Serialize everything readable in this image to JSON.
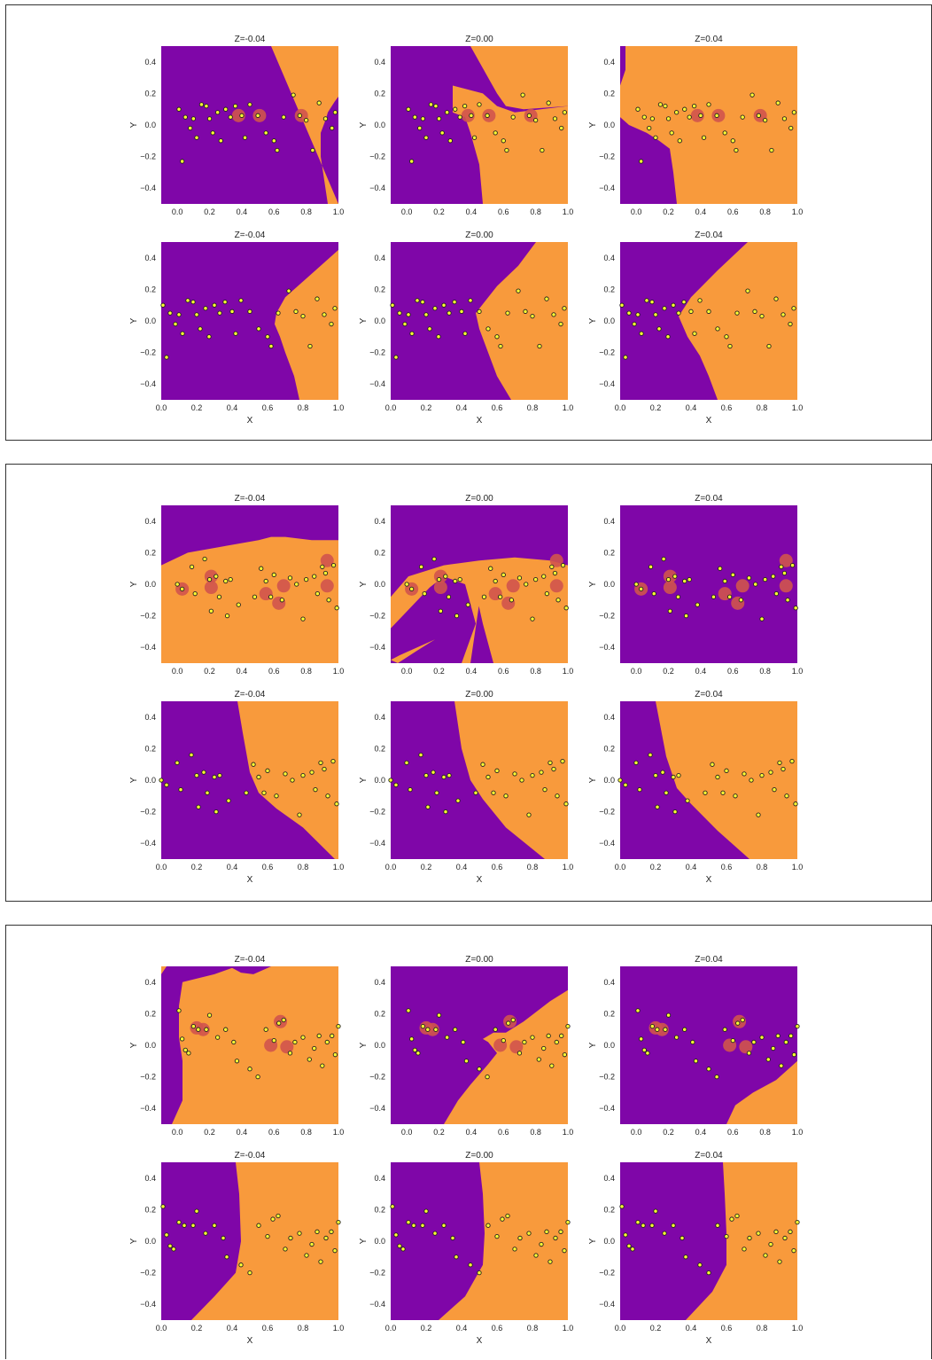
{
  "colors": {
    "class_0": "#7f06a8",
    "class_1": "#f89a3c",
    "point_fill": "#ffff33",
    "point_edge": "#222222",
    "highlight": "#d0544c"
  },
  "xticks": [
    "0.0",
    "0.2",
    "0.4",
    "0.6",
    "0.8",
    "1.0"
  ],
  "yticks": [
    "0.4",
    "0.2",
    "0.0",
    "-0.2",
    "-0.4"
  ],
  "x_label": "X",
  "y_label": "Y",
  "panels": [
    {
      "rows": [
        {
          "titles": [
            "Z=-0.04",
            "Z=0.00",
            "Z=0.04"
          ]
        },
        {
          "titles": [
            "Z=-0.04",
            "Z=0.00",
            "Z=0.04"
          ]
        }
      ]
    },
    {
      "rows": [
        {
          "titles": [
            "Z=-0.04",
            "Z=0.00",
            "Z=0.04"
          ]
        },
        {
          "titles": [
            "Z=-0.04",
            "Z=0.00",
            "Z=0.04"
          ]
        }
      ]
    },
    {
      "rows": [
        {
          "titles": [
            "Z=-0.04",
            "Z=0.00",
            "Z=0.04"
          ]
        },
        {
          "titles": [
            "Z=-0.04",
            "Z=0.00",
            "Z=0.04"
          ]
        }
      ]
    }
  ],
  "chart_data": [
    {
      "type": "scatter",
      "description_of_regions": "decision regions of a binary classifier at three Z slices",
      "xlim_top": [
        -0.1,
        1.0
      ],
      "xlim_bottom": [
        0.0,
        1.0
      ],
      "ylim": [
        -0.5,
        0.5
      ],
      "grid": false,
      "series": [
        {
          "values": [
            [
              0.01,
              0.1
            ],
            [
              0.03,
              -0.23
            ],
            [
              0.05,
              0.05
            ],
            [
              0.08,
              -0.02
            ],
            [
              0.1,
              0.04
            ],
            [
              0.12,
              -0.08
            ],
            [
              0.15,
              0.13
            ],
            [
              0.18,
              0.12
            ],
            [
              0.2,
              0.04
            ],
            [
              0.22,
              -0.05
            ],
            [
              0.25,
              0.08
            ],
            [
              0.27,
              -0.1
            ],
            [
              0.3,
              0.1
            ],
            [
              0.33,
              0.05
            ],
            [
              0.36,
              0.12
            ],
            [
              0.4,
              0.06
            ],
            [
              0.42,
              -0.08
            ],
            [
              0.45,
              0.13
            ],
            [
              0.5,
              0.06
            ],
            [
              0.55,
              -0.05
            ],
            [
              0.6,
              -0.1
            ],
            [
              0.62,
              -0.16
            ],
            [
              0.66,
              0.05
            ],
            [
              0.72,
              0.19
            ],
            [
              0.76,
              0.06
            ],
            [
              0.8,
              0.03
            ],
            [
              0.84,
              -0.16
            ],
            [
              0.88,
              0.14
            ],
            [
              0.92,
              0.04
            ],
            [
              0.96,
              -0.02
            ],
            [
              0.98,
              0.08
            ]
          ]
        }
      ],
      "highlighted": [
        [
          0.38,
          0.06
        ],
        [
          0.51,
          0.06
        ],
        [
          0.77,
          0.06
        ]
      ]
    },
    {
      "type": "scatter",
      "xlim_top": [
        -0.1,
        1.0
      ],
      "xlim_bottom": [
        0.0,
        1.0
      ],
      "ylim": [
        -0.5,
        0.5
      ],
      "grid": false,
      "series": [
        {
          "values": [
            [
              0.0,
              0.0
            ],
            [
              0.03,
              -0.03
            ],
            [
              0.09,
              0.11
            ],
            [
              0.11,
              -0.06
            ],
            [
              0.17,
              0.16
            ],
            [
              0.2,
              0.03
            ],
            [
              0.21,
              -0.17
            ],
            [
              0.24,
              0.05
            ],
            [
              0.26,
              -0.08
            ],
            [
              0.3,
              0.02
            ],
            [
              0.31,
              -0.2
            ],
            [
              0.33,
              0.03
            ],
            [
              0.38,
              -0.13
            ],
            [
              0.48,
              -0.08
            ],
            [
              0.52,
              0.1
            ],
            [
              0.55,
              0.02
            ],
            [
              0.58,
              -0.08
            ],
            [
              0.6,
              0.06
            ],
            [
              0.65,
              -0.1
            ],
            [
              0.7,
              0.04
            ],
            [
              0.74,
              0.0
            ],
            [
              0.78,
              -0.22
            ],
            [
              0.8,
              0.03
            ],
            [
              0.85,
              0.05
            ],
            [
              0.87,
              -0.06
            ],
            [
              0.9,
              0.11
            ],
            [
              0.92,
              0.07
            ],
            [
              0.94,
              -0.1
            ],
            [
              0.97,
              0.12
            ],
            [
              0.99,
              -0.15
            ]
          ]
        }
      ],
      "highlighted": [
        [
          0.03,
          -0.03
        ],
        [
          0.21,
          0.05
        ],
        [
          0.21,
          -0.02
        ],
        [
          0.55,
          -0.06
        ],
        [
          0.63,
          -0.12
        ],
        [
          0.66,
          -0.01
        ],
        [
          0.93,
          0.15
        ],
        [
          0.93,
          -0.01
        ]
      ]
    },
    {
      "type": "scatter",
      "xlim_top": [
        -0.1,
        1.0
      ],
      "xlim_bottom": [
        0.0,
        1.0
      ],
      "ylim": [
        -0.5,
        0.5
      ],
      "grid": false,
      "series": [
        {
          "values": [
            [
              0.01,
              0.22
            ],
            [
              0.03,
              0.04
            ],
            [
              0.05,
              -0.03
            ],
            [
              0.07,
              -0.05
            ],
            [
              0.1,
              0.12
            ],
            [
              0.13,
              0.1
            ],
            [
              0.18,
              0.1
            ],
            [
              0.2,
              0.19
            ],
            [
              0.25,
              0.05
            ],
            [
              0.3,
              0.1
            ],
            [
              0.35,
              0.02
            ],
            [
              0.37,
              -0.1
            ],
            [
              0.45,
              -0.15
            ],
            [
              0.5,
              -0.2
            ],
            [
              0.55,
              0.1
            ],
            [
              0.6,
              0.03
            ],
            [
              0.63,
              0.14
            ],
            [
              0.66,
              0.16
            ],
            [
              0.7,
              -0.05
            ],
            [
              0.73,
              0.02
            ],
            [
              0.78,
              0.05
            ],
            [
              0.82,
              -0.09
            ],
            [
              0.85,
              -0.02
            ],
            [
              0.88,
              0.06
            ],
            [
              0.9,
              -0.13
            ],
            [
              0.93,
              0.02
            ],
            [
              0.96,
              0.06
            ],
            [
              0.98,
              -0.06
            ],
            [
              1.0,
              0.12
            ]
          ]
        }
      ],
      "highlighted": [
        [
          0.12,
          0.11
        ],
        [
          0.16,
          0.1
        ],
        [
          0.58,
          0.0
        ],
        [
          0.64,
          0.15
        ],
        [
          0.68,
          -0.01
        ]
      ]
    }
  ]
}
